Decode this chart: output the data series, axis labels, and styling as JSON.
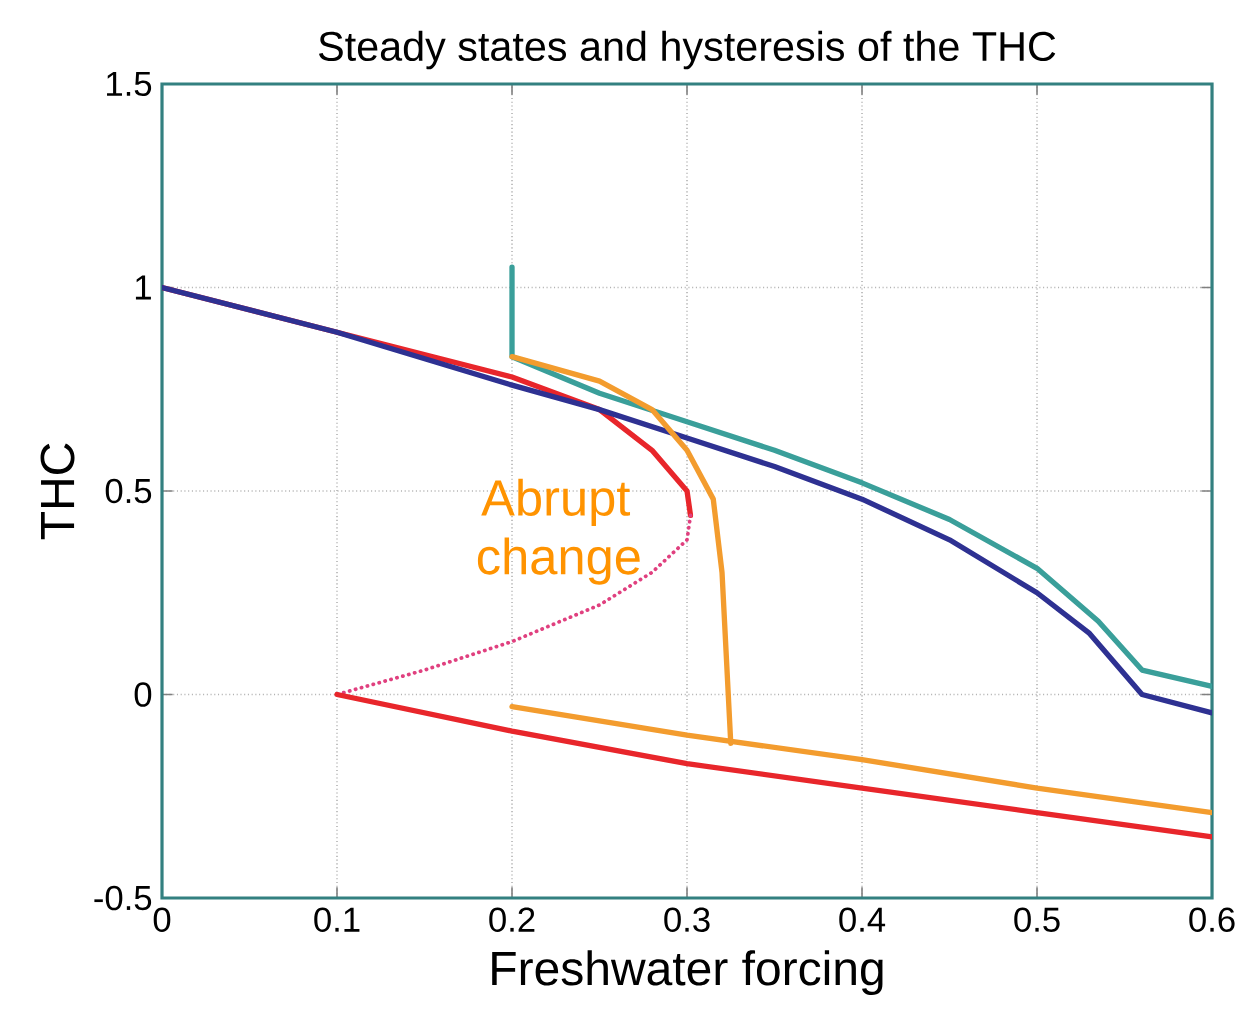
{
  "chart_data": {
    "type": "line",
    "title": "Steady states and hysteresis of the THC",
    "xlabel": "Freshwater forcing",
    "ylabel": "THC",
    "series": [
      {
        "color": "#e8262b",
        "x": [
          0,
          0.1,
          0.2,
          0.25,
          0.28,
          0.3,
          0.302
        ],
        "values": [
          1,
          0.89,
          0.78,
          0.7,
          0.6,
          0.5,
          0.44
        ]
      },
      {
        "color": "#e0407f",
        "line_style": "dotted",
        "x": [
          0.302,
          0.3,
          0.28,
          0.25,
          0.2,
          0.15,
          0.1
        ],
        "values": [
          0.44,
          0.38,
          0.3,
          0.22,
          0.13,
          0.06,
          0
        ]
      },
      {
        "color": "#e8262b",
        "x": [
          0.1,
          0.2,
          0.3,
          0.4,
          0.5,
          0.6
        ],
        "values": [
          0,
          -0.09,
          -0.17,
          -0.23,
          -0.29,
          -0.35
        ]
      },
      {
        "color": "#2e3192",
        "x": [
          0,
          0.1,
          0.2,
          0.25,
          0.3,
          0.35,
          0.4,
          0.45,
          0.5,
          0.53,
          0.56,
          0.6
        ],
        "values": [
          1,
          0.89,
          0.76,
          0.7,
          0.63,
          0.56,
          0.48,
          0.38,
          0.25,
          0.15,
          0,
          -0.045
        ]
      },
      {
        "color": "#3a9f9a",
        "x": [
          0.2,
          0.2,
          0.25,
          0.3,
          0.35,
          0.4,
          0.45,
          0.5,
          0.535,
          0.56,
          0.6
        ],
        "values": [
          1.05,
          0.83,
          0.74,
          0.67,
          0.6,
          0.52,
          0.43,
          0.31,
          0.18,
          0.06,
          0.02
        ]
      },
      {
        "color": "#f39c2e",
        "x": [
          0.2,
          0.25,
          0.28,
          0.3,
          0.315,
          0.32,
          0.325
        ],
        "values": [
          0.83,
          0.77,
          0.7,
          0.6,
          0.48,
          0.3,
          -0.12
        ]
      },
      {
        "color": "#f39c2e",
        "x": [
          0.2,
          0.3,
          0.4,
          0.5,
          0.6
        ],
        "values": [
          -0.03,
          -0.1,
          -0.16,
          -0.23,
          -0.29
        ]
      }
    ],
    "annotations": [
      "Abrupt change"
    ],
    "xlim": [
      0,
      0.6
    ],
    "ylim": [
      -0.5,
      1.5
    ],
    "xticks": [
      0,
      0.1,
      0.2,
      0.3,
      0.4,
      0.5,
      0.6
    ],
    "yticks": [
      -0.5,
      0,
      0.5,
      1,
      1.5
    ],
    "grid": true,
    "marker": "none"
  }
}
